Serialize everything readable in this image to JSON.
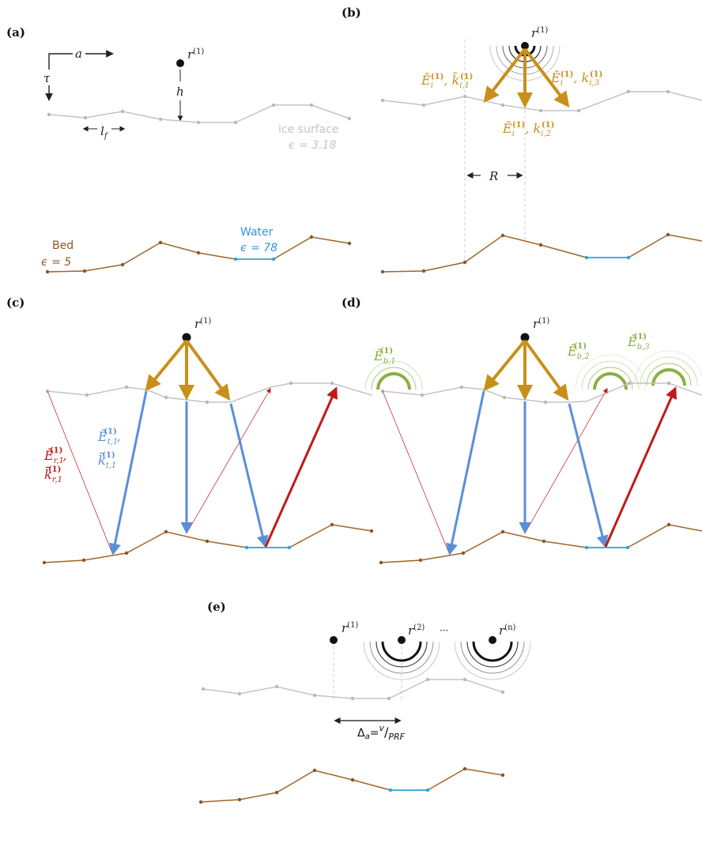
{
  "colors": {
    "ice": "#c4c4c4",
    "bed": "#a0642a",
    "water": "#2aa3e0",
    "incident": "#c8901a",
    "transmitted": "#5b8ed8",
    "reflected": "#c01a1a",
    "backscatter": "#88b040",
    "text_ice": "#c4c4c4",
    "text_bed": "#8a5527",
    "text_water": "#2e95e0"
  },
  "panels": {
    "a": {
      "label": "(a)",
      "receiver": "r",
      "receiver_sup": "(1)",
      "a": "a",
      "tau": "τ",
      "h": "h",
      "lf": "l",
      "lf_sub": "f",
      "ice_name": "ice surface",
      "ice_eps": "ϵ = 3.18",
      "bed_name": "Bed",
      "bed_eps": "ϵ = 5",
      "water_name": "Water",
      "water_eps": "ϵ = 78"
    },
    "b": {
      "label": "(b)",
      "receiver": "r",
      "receiver_sup": "(1)",
      "E_left_sub": "i",
      "E_sup": "(1)",
      "k_left_sub": "i,1",
      "E_right_sub": "i",
      "k_right_sub": "i,3",
      "E_mid_sub": "i",
      "k_mid_sub": "i,2",
      "R": "R"
    },
    "c": {
      "label": "(c)",
      "receiver": "r",
      "receiver_sup": "(1)",
      "Er_sub": "r,1",
      "kr_sub": "r,1",
      "Et_sub": "t,1",
      "kt_sub": "t,1",
      "sup": "(1)"
    },
    "d": {
      "label": "(d)",
      "receiver": "r",
      "receiver_sup": "(1)",
      "Eb1_sub": "b,1",
      "Eb2_sub": "b,2",
      "Eb3_sub": "b,3",
      "sup": "(1)"
    },
    "e": {
      "label": "(e)",
      "r1_sup": "(1)",
      "r2_sup": "(2)",
      "rn_sup": "(n)",
      "receiver": "r",
      "ellipsis": "···",
      "delta": "Δ",
      "delta_sub": "a",
      "eq": "=",
      "v": "v",
      "slash": "/",
      "prf": "PRF"
    }
  }
}
